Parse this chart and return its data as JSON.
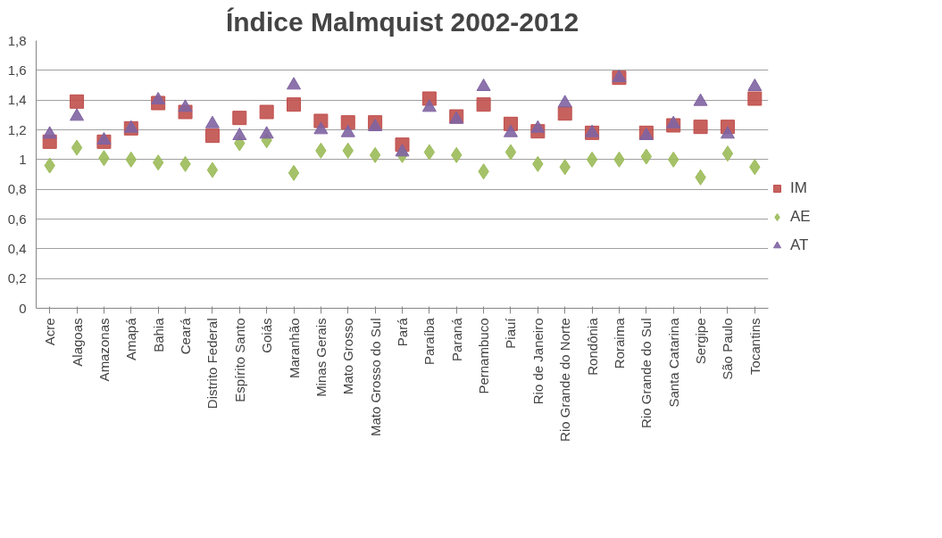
{
  "chart_data": {
    "type": "scatter",
    "title": "Índice Malmquist 2002-2012",
    "categories": [
      "Acre",
      "Alagoas",
      "Amazonas",
      "Amapá",
      "Bahia",
      "Ceará",
      "Distrito Federal",
      "Espírito Santo",
      "Goiás",
      "Maranhão",
      "Minas Gerais",
      "Mato Grosso",
      "Mato Grosso do Sul",
      "Pará",
      "Paraíba",
      "Paraná",
      "Pernambuco",
      "Piauí",
      "Rio de Janeiro",
      "Rio Grande do Norte",
      "Rondônia",
      "Roraima",
      "Rio Grande do Sul",
      "Santa Catarina",
      "Sergipe",
      "São Paulo",
      "Tocantins"
    ],
    "series": [
      {
        "name": "IM",
        "color": "#c0504d",
        "marker": "square",
        "values": [
          1.12,
          1.39,
          1.12,
          1.21,
          1.38,
          1.32,
          1.16,
          1.28,
          1.32,
          1.37,
          1.26,
          1.25,
          1.25,
          1.1,
          1.41,
          1.29,
          1.37,
          1.24,
          1.19,
          1.31,
          1.18,
          1.55,
          1.18,
          1.23,
          1.22,
          1.22,
          1.41
        ]
      },
      {
        "name": "AE",
        "color": "#9bbb59",
        "marker": "diamond",
        "values": [
          0.96,
          1.08,
          1.01,
          1.0,
          0.98,
          0.97,
          0.93,
          1.11,
          1.13,
          0.91,
          1.06,
          1.06,
          1.03,
          1.03,
          1.05,
          1.03,
          0.92,
          1.05,
          0.97,
          0.95,
          1.0,
          1.0,
          1.02,
          1.0,
          0.88,
          1.04,
          0.95
        ]
      },
      {
        "name": "AT",
        "color": "#8064a2",
        "marker": "triangle",
        "values": [
          1.17,
          1.29,
          1.13,
          1.21,
          1.4,
          1.35,
          1.24,
          1.16,
          1.17,
          1.5,
          1.2,
          1.18,
          1.22,
          1.05,
          1.35,
          1.27,
          1.49,
          1.18,
          1.21,
          1.38,
          1.18,
          1.55,
          1.16,
          1.24,
          1.39,
          1.17,
          1.49
        ]
      }
    ],
    "ylim": [
      0,
      1.8
    ],
    "yticks": [
      0,
      {
        "value": 0.2,
        "label": "0,2"
      },
      {
        "value": 0.4,
        "label": "0,4"
      },
      {
        "value": 0.6,
        "label": "0,6"
      },
      {
        "value": 0.8,
        "label": "0,8"
      },
      1,
      {
        "value": 1.2,
        "label": "1,2"
      },
      {
        "value": 1.4,
        "label": "1,4"
      },
      {
        "value": 1.6,
        "label": "1,6"
      },
      {
        "value": 1.8,
        "label": "1,8"
      }
    ],
    "grid": "y",
    "legend": "right"
  }
}
